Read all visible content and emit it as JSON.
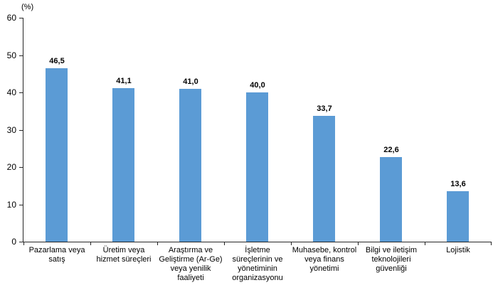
{
  "chart_data": {
    "type": "bar",
    "title": "",
    "unit_label": "(%)",
    "categories": [
      "Pazarlama veya satış",
      "Üretim veya hizmet süreçleri",
      "Araştırma ve Geliştirme (Ar-Ge) veya yenilik faaliyeti",
      "İşletme süreçlerinin ve yönetiminin organizasyonu",
      "Muhasebe, kontrol veya finans yönetimi",
      "Bilgi ve iletişim teknolojileri güvenliği",
      "Lojistik"
    ],
    "values": [
      46.5,
      41.1,
      41.0,
      40.0,
      33.7,
      22.6,
      13.6
    ],
    "value_labels": [
      "46,5",
      "41,1",
      "41,0",
      "40,0",
      "33,7",
      "22,6",
      "13,6"
    ],
    "xlabel": "",
    "ylabel": "(%)",
    "ylim": [
      0,
      60
    ],
    "yticks": [
      0,
      10,
      20,
      30,
      40,
      50,
      60
    ],
    "grid": false,
    "legend": false,
    "bar_color": "#5b9bd5",
    "axis_color": "#262626",
    "text_color": "#000000"
  }
}
